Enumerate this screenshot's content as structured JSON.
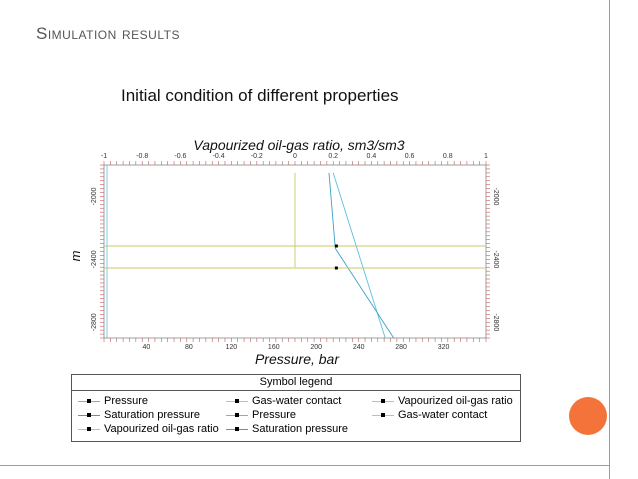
{
  "slide": {
    "title": "Simulation results",
    "subtitle": "Initial condition of different properties"
  },
  "colors": {
    "frame": "#d98a63",
    "accent_circle": "#f4733b",
    "pressure": "#5bc0de",
    "saturation": "#3aa0c8",
    "contact": "#c8c86a",
    "vapourized": "#c8c86a",
    "axis_red": "#cc5555"
  },
  "chart_data": {
    "type": "line",
    "top_axis": {
      "label": "Vapourized oil-gas ratio, sm3/sm3",
      "range": [
        -1,
        1
      ],
      "ticks": [
        "-1",
        "-0.8",
        "-0.6",
        "-0.4",
        "-0.2",
        "0",
        "0.2",
        "0.4",
        "0.6",
        "0.8",
        "1"
      ]
    },
    "bottom_axis": {
      "label": "Pressure, bar",
      "range": [
        0,
        360
      ],
      "ticks": [
        "40",
        "80",
        "120",
        "160",
        "200",
        "240",
        "280",
        "320"
      ]
    },
    "y_axis": {
      "label": "m",
      "range": [
        -1800,
        -2900
      ],
      "ticks": [
        "-2000",
        "-2400",
        "-2800"
      ]
    },
    "series": [
      {
        "name": "Pressure",
        "axis": "bottom",
        "x": [
          216,
          265
        ],
        "y": [
          -1850,
          -2900
        ]
      },
      {
        "name": "Saturation pressure",
        "axis": "bottom",
        "x": [
          212,
          218,
          273
        ],
        "y": [
          -1850,
          -2330,
          -2900
        ]
      },
      {
        "name": "Gas-water contact",
        "axis": "top",
        "x": [
          -1,
          1
        ],
        "y": [
          -2315,
          -2315
        ]
      },
      {
        "name": "Vapourized oil-gas ratio",
        "axis": "top",
        "x": [
          0,
          0
        ],
        "y": [
          -1850,
          -2450
        ]
      },
      {
        "name": "Gas-water contact",
        "axis": "top",
        "x": [
          -1,
          1
        ],
        "y": [
          -2455,
          -2455
        ]
      }
    ],
    "markers": [
      {
        "axis": "bottom",
        "x": 219,
        "y": -2315
      },
      {
        "axis": "bottom",
        "x": 219,
        "y": -2455
      }
    ]
  },
  "legend": {
    "title": "Symbol legend",
    "items": [
      {
        "label": "Pressure",
        "color": "#5bc0de"
      },
      {
        "label": "Gas-water contact",
        "color": "#c8c86a"
      },
      {
        "label": "Vapourized oil-gas ratio",
        "color": "#c8c86a"
      },
      {
        "label": "Saturation pressure",
        "color": "#3aa0c8"
      },
      {
        "label": "Pressure",
        "color": "#5bc0de"
      },
      {
        "label": "Gas-water contact",
        "color": "#c8c86a"
      },
      {
        "label": "Vapourized oil-gas ratio",
        "color": "#c8c86a"
      },
      {
        "label": "Saturation pressure",
        "color": "#3aa0c8"
      }
    ]
  }
}
